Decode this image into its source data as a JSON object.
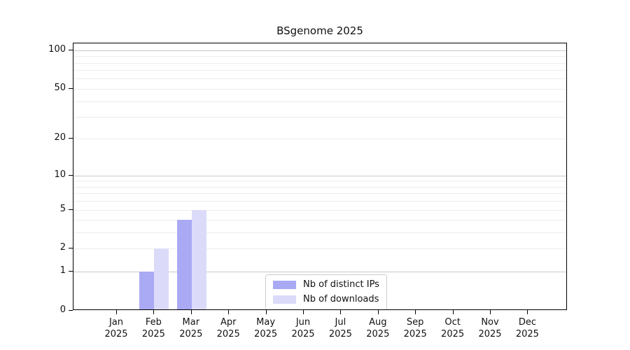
{
  "title": "BSgenome 2025",
  "chart_data": {
    "type": "bar",
    "title": "BSgenome 2025",
    "categories": [
      "Jan",
      "Feb",
      "Mar",
      "Apr",
      "May",
      "Jun",
      "Jul",
      "Aug",
      "Sep",
      "Oct",
      "Nov",
      "Dec"
    ],
    "category_year": "2025",
    "series": [
      {
        "name": "Nb of distinct IPs",
        "color": "#a9a9f4",
        "values": [
          0,
          1,
          4,
          0,
          0,
          0,
          0,
          0,
          0,
          0,
          0,
          0
        ]
      },
      {
        "name": "Nb of downloads",
        "color": "#dbdbf9",
        "values": [
          0,
          2,
          5,
          0,
          0,
          0,
          0,
          0,
          0,
          0,
          0,
          0
        ]
      }
    ],
    "xlabel": "",
    "ylabel": "",
    "yscale": "log1p",
    "yticks": [
      0,
      1,
      2,
      5,
      10,
      20,
      50,
      100
    ],
    "ylim": [
      0,
      113
    ],
    "grid": true,
    "grid_minor_values": [
      2,
      3,
      4,
      5,
      6,
      7,
      8,
      9,
      20,
      30,
      40,
      50,
      60,
      70,
      80,
      90
    ],
    "grid_major_values": [
      1,
      10,
      100
    ],
    "legend_position": "inside-bottom-center"
  },
  "colors": {
    "bar_distinct_ips": "#a9a9f4",
    "bar_downloads": "#dbdbf9",
    "grid_minor": "#ededed",
    "grid_major": "#c8c8c8",
    "spine": "#000000",
    "legend_border": "#cccccc",
    "background": "#ffffff",
    "text": "#111111"
  }
}
